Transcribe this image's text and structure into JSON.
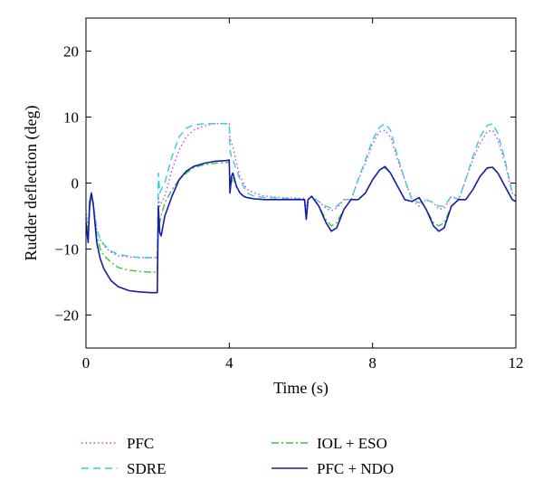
{
  "chart_data": {
    "type": "line",
    "title": "",
    "xlabel": "Time (s)",
    "ylabel": "Rudder deflection (deg)",
    "xlim": [
      0,
      12
    ],
    "ylim": [
      -25,
      25
    ],
    "xticks": [
      0,
      4,
      8,
      12
    ],
    "yticks": [
      -20,
      -10,
      0,
      10,
      20
    ],
    "grid": false,
    "legend_position": "bottom",
    "series": [
      {
        "name": "PFC",
        "color": "#cc44cc",
        "style": "dotted",
        "x": [
          0,
          0.06,
          0.1,
          0.15,
          0.2,
          0.25,
          0.3,
          0.4,
          0.5,
          0.7,
          0.9,
          1.2,
          1.5,
          1.8,
          1.99,
          2.02,
          2.06,
          2.1,
          2.2,
          2.4,
          2.6,
          2.8,
          3.0,
          3.3,
          3.6,
          3.9,
          4.0,
          4.02,
          4.06,
          4.1,
          4.2,
          4.3,
          4.4,
          4.5,
          4.7,
          5.0,
          5.5,
          6.0,
          6.1,
          6.15,
          6.2,
          6.3,
          6.5,
          6.7,
          6.85,
          7.0,
          7.2,
          7.4,
          7.6,
          7.8,
          8.0,
          8.2,
          8.35,
          8.5,
          8.7,
          8.9,
          9.1,
          9.3,
          9.5,
          9.7,
          9.85,
          10.0,
          10.2,
          10.4,
          10.6,
          10.8,
          11.0,
          11.2,
          11.35,
          11.5,
          11.7,
          11.9,
          12.0
        ],
        "y": [
          -4,
          -7,
          -4,
          -2,
          -3,
          -5,
          -7,
          -8.5,
          -9.5,
          -10.5,
          -11,
          -11.2,
          -11.3,
          -11.3,
          -11.3,
          -2,
          -3.5,
          -3,
          -2,
          2,
          5,
          7,
          8,
          8.7,
          9,
          9,
          9,
          7,
          6,
          5.5,
          3,
          1,
          0,
          -1,
          -1.5,
          -2,
          -2.2,
          -2.3,
          -2.3,
          -4,
          -2.5,
          -2,
          -2.8,
          -3.8,
          -4.2,
          -3.8,
          -2.5,
          -2.5,
          0.5,
          3,
          6,
          7.8,
          8,
          7,
          3.5,
          0.5,
          -2.5,
          -3.5,
          -2.5,
          -3,
          -4,
          -3.8,
          -2,
          -2.5,
          0.5,
          3.5,
          6,
          7.8,
          8,
          6.5,
          3,
          -1.5,
          -2
        ]
      },
      {
        "name": "SDRE",
        "color": "#33ccdd",
        "style": "dashed",
        "x": [
          0,
          0.06,
          0.1,
          0.15,
          0.2,
          0.25,
          0.3,
          0.4,
          0.5,
          0.7,
          0.9,
          1.2,
          1.5,
          1.8,
          1.99,
          2.02,
          2.06,
          2.1,
          2.2,
          2.4,
          2.6,
          2.8,
          3.0,
          3.3,
          3.6,
          3.9,
          4.0,
          4.02,
          4.06,
          4.1,
          4.2,
          4.3,
          4.4,
          4.5,
          4.7,
          5.0,
          5.5,
          6.0,
          6.1,
          6.15,
          6.2,
          6.3,
          6.5,
          6.7,
          6.85,
          7.0,
          7.2,
          7.4,
          7.6,
          7.8,
          8.0,
          8.2,
          8.35,
          8.5,
          8.7,
          8.9,
          9.1,
          9.3,
          9.5,
          9.7,
          9.85,
          10.0,
          10.2,
          10.4,
          10.6,
          10.8,
          11.0,
          11.2,
          11.35,
          11.5,
          11.7,
          11.9,
          12.0
        ],
        "y": [
          -5,
          -7,
          -4,
          -2,
          -3,
          -5,
          -7,
          -8.5,
          -9.3,
          -10.3,
          -10.8,
          -11.1,
          -11.3,
          -11.3,
          -11.4,
          1.5,
          -1.5,
          -1,
          0,
          4,
          7,
          8.3,
          8.8,
          9,
          9,
          9,
          9,
          5,
          4,
          3.5,
          2,
          0.5,
          -0.5,
          -1.5,
          -2,
          -2.2,
          -2.3,
          -2.4,
          -2.4,
          -4.5,
          -2.5,
          -2,
          -2.8,
          -3.5,
          -3.8,
          -3.5,
          -2.5,
          -2.5,
          0.5,
          3.5,
          6.5,
          8.5,
          9,
          8,
          4,
          0.5,
          -2.5,
          -3,
          -2.5,
          -3,
          -3.5,
          -3.5,
          -2,
          -2.5,
          0.5,
          4,
          7,
          8.7,
          9,
          7.5,
          3.5,
          -1.5,
          -2
        ]
      },
      {
        "name": "IOL + ESO",
        "color": "#33cc33",
        "style": "dashdot",
        "x": [
          0,
          0.06,
          0.1,
          0.15,
          0.2,
          0.25,
          0.3,
          0.4,
          0.5,
          0.7,
          0.9,
          1.2,
          1.5,
          1.8,
          1.99,
          2.02,
          2.06,
          2.1,
          2.2,
          2.4,
          2.6,
          2.8,
          3.0,
          3.3,
          3.6,
          3.9,
          4.0,
          4.02,
          4.06,
          4.1,
          4.2,
          4.3,
          4.4,
          4.5,
          4.7,
          5.0,
          5.5,
          6.0,
          6.1,
          6.15,
          6.2,
          6.3,
          6.5,
          6.7,
          6.85,
          7.0,
          7.2,
          7.4,
          7.6,
          7.8,
          8.0,
          8.2,
          8.35,
          8.5,
          8.7,
          8.9,
          9.1,
          9.3,
          9.5,
          9.7,
          9.85,
          10.0,
          10.2,
          10.4,
          10.6,
          10.8,
          11.0,
          11.2,
          11.35,
          11.5,
          11.7,
          11.9,
          12.0
        ],
        "y": [
          -6,
          -8,
          -4,
          -2,
          -3,
          -6,
          -8,
          -10,
          -11,
          -12,
          -12.8,
          -13.2,
          -13.4,
          -13.5,
          -13.5,
          -4,
          -6,
          -5,
          -3,
          -1,
          0.5,
          1.5,
          2.3,
          2.8,
          3,
          3.1,
          3.2,
          -1.5,
          0,
          0.8,
          -0.5,
          -1.5,
          -2,
          -2.2,
          -2.4,
          -2.5,
          -2.5,
          -2.5,
          -2.5,
          -5,
          -2.5,
          -2,
          -3.5,
          -5.5,
          -6.5,
          -6,
          -4,
          -2.5,
          -2.5,
          -1.5,
          0.5,
          2,
          2.3,
          1.5,
          -0.5,
          -2.5,
          -2.8,
          -2.2,
          -4,
          -6,
          -6.5,
          -6,
          -3.5,
          -2.5,
          -2.5,
          -1,
          1,
          2.2,
          2.3,
          1.5,
          -0.5,
          -2.5,
          -2.8
        ]
      },
      {
        "name": "PFC + NDO",
        "color": "#1a1aaa",
        "style": "solid",
        "x": [
          0,
          0.06,
          0.1,
          0.15,
          0.2,
          0.25,
          0.3,
          0.4,
          0.5,
          0.7,
          0.9,
          1.2,
          1.5,
          1.8,
          1.99,
          2.02,
          2.06,
          2.1,
          2.2,
          2.4,
          2.6,
          2.8,
          3.0,
          3.3,
          3.6,
          3.9,
          4.0,
          4.02,
          4.06,
          4.1,
          4.2,
          4.3,
          4.4,
          4.5,
          4.7,
          5.0,
          5.5,
          6.0,
          6.1,
          6.15,
          6.2,
          6.3,
          6.5,
          6.7,
          6.85,
          7.0,
          7.2,
          7.4,
          7.6,
          7.8,
          8.0,
          8.2,
          8.35,
          8.5,
          8.7,
          8.9,
          9.1,
          9.3,
          9.5,
          9.7,
          9.85,
          10.0,
          10.2,
          10.4,
          10.6,
          10.8,
          11.0,
          11.2,
          11.35,
          11.5,
          11.7,
          11.9,
          12.0
        ],
        "y": [
          -6,
          -9,
          -3,
          -1.5,
          -3,
          -6,
          -9,
          -11.5,
          -13,
          -14.8,
          -15.7,
          -16.3,
          -16.5,
          -16.6,
          -16.6,
          -3.5,
          -7.5,
          -8,
          -5,
          -2,
          0.5,
          1.8,
          2.5,
          3,
          3.3,
          3.4,
          3.5,
          -1.5,
          1,
          1.5,
          -0.5,
          -1.5,
          -2,
          -2.2,
          -2.4,
          -2.5,
          -2.5,
          -2.5,
          -2.5,
          -5.5,
          -2.5,
          -2,
          -3.5,
          -6,
          -7.3,
          -6.8,
          -4,
          -2.5,
          -2.5,
          -1.5,
          0.5,
          2,
          2.5,
          1.5,
          -0.5,
          -2.5,
          -2.8,
          -2.2,
          -4,
          -6.5,
          -7.3,
          -6.8,
          -3.5,
          -2.5,
          -2.5,
          -1,
          1,
          2.3,
          2.4,
          1.5,
          -0.5,
          -2.5,
          -2.8
        ]
      }
    ]
  }
}
